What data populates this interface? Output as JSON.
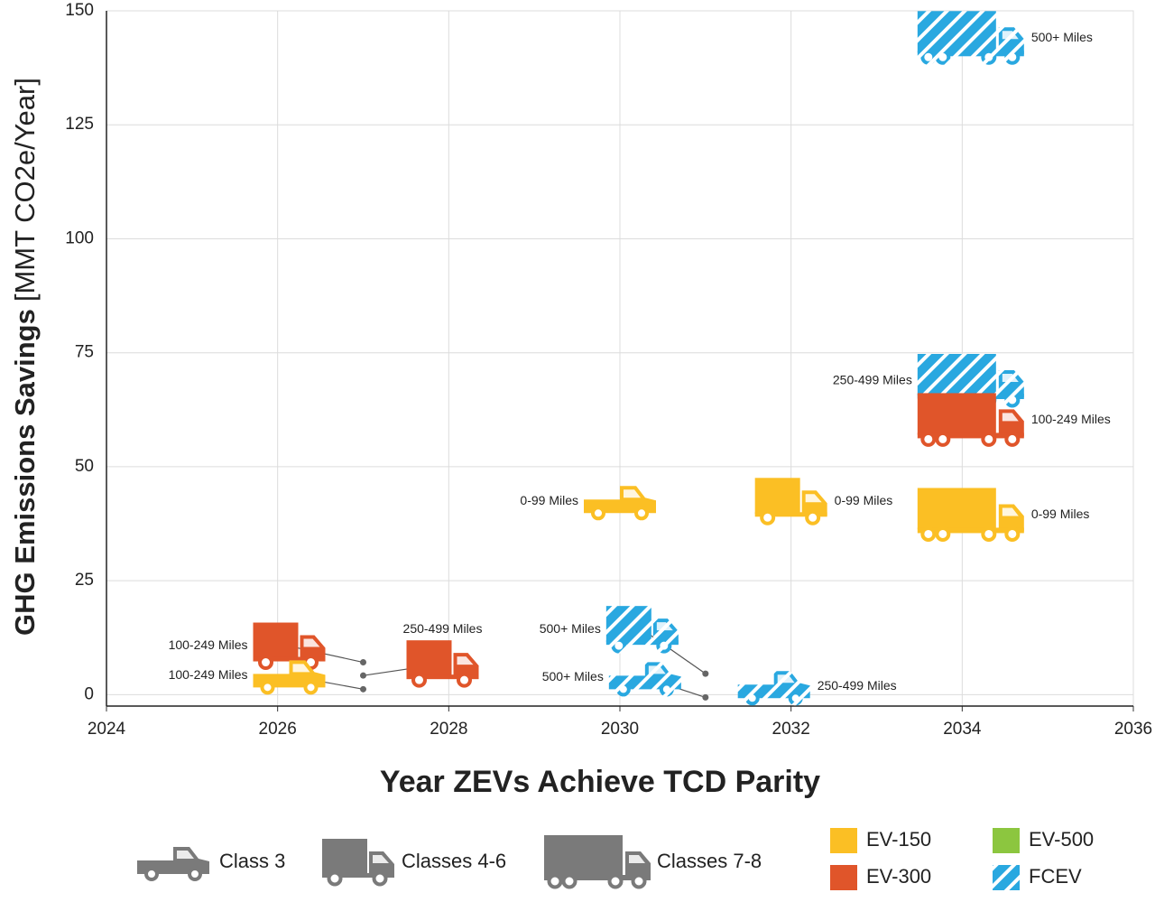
{
  "chart_data": {
    "type": "scatter",
    "y_label": "GHG Emissions Savings",
    "y_unit": "[MMT CO2e/Year]",
    "x_label": "Year ZEVs Achieve TCD Parity",
    "xlim": [
      2024,
      2036
    ],
    "xticks": [
      2024,
      2026,
      2028,
      2030,
      2032,
      2034,
      2036
    ],
    "ylim": [
      -2.5,
      150
    ],
    "yticks": [
      0,
      25,
      50,
      75,
      100,
      125,
      150
    ],
    "grid": true,
    "classes": [
      "Class 3",
      "Classes 4-6",
      "Classes 7-8"
    ],
    "series": [
      {
        "name": "EV-150",
        "color": "#fbbf24"
      },
      {
        "name": "EV-300",
        "color": "#e0552a"
      },
      {
        "name": "EV-500",
        "color": "#8cc63f"
      },
      {
        "name": "FCEV",
        "color": "#29a8e0",
        "pattern": "hatch"
      }
    ],
    "points": [
      {
        "x": 2027.0,
        "y": 7.1,
        "class": "Classes 4-6",
        "fuel": "EV-300",
        "label": "100-249 Miles"
      },
      {
        "x": 2027.0,
        "y": 1.2,
        "class": "Class 3",
        "fuel": "EV-150",
        "label": "100-249 Miles"
      },
      {
        "x": 2027.0,
        "y": 4.2,
        "class": "Classes 4-6",
        "fuel": "EV-300",
        "label": "250-499 Miles"
      },
      {
        "x": 2030.0,
        "y": 42.4,
        "class": "Class 3",
        "fuel": "EV-150",
        "label": "0-99 Miles"
      },
      {
        "x": 2032.0,
        "y": 42.4,
        "class": "Classes 4-6",
        "fuel": "EV-150",
        "label": "0-99 Miles"
      },
      {
        "x": 2034.1,
        "y": 39.4,
        "class": "Classes 7-8",
        "fuel": "EV-150",
        "label": "0-99 Miles"
      },
      {
        "x": 2034.1,
        "y": 68.8,
        "class": "Classes 7-8",
        "fuel": "FCEV",
        "label": "250-499 Miles"
      },
      {
        "x": 2034.1,
        "y": 60.2,
        "class": "Classes 7-8",
        "fuel": "EV-300",
        "label": "100-249 Miles"
      },
      {
        "x": 2034.1,
        "y": 144,
        "class": "Classes 7-8",
        "fuel": "FCEV",
        "label": "500+ Miles"
      },
      {
        "x": 2031.0,
        "y": 4.6,
        "class": "Classes 4-6",
        "fuel": "FCEV",
        "label": "500+ Miles"
      },
      {
        "x": 2031.0,
        "y": -0.6,
        "class": "Class 3",
        "fuel": "FCEV",
        "label": "500+ Miles"
      },
      {
        "x": 2031.8,
        "y": 1.8,
        "class": "Class 3",
        "fuel": "FCEV",
        "label": "250-499 Miles"
      }
    ]
  }
}
